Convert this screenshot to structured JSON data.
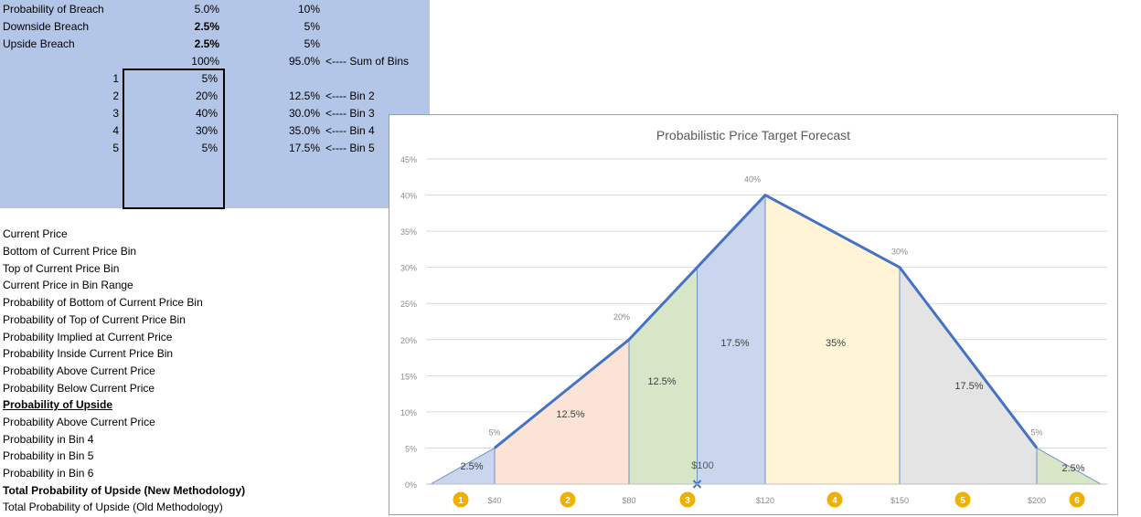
{
  "spreadsheet": {
    "top_block": [
      {
        "label": "Probability of Breach",
        "col2": "5.0%",
        "col3": "10%",
        "note": ""
      },
      {
        "label": "Downside Breach",
        "col2": "2.5%",
        "col3": "5%",
        "note": ""
      },
      {
        "label": "Upside Breach",
        "col2": "2.5%",
        "col3": "5%",
        "note": ""
      },
      {
        "label": "",
        "col2": "100%",
        "col3": "95.0%",
        "note": "<---- Sum of Bins"
      }
    ],
    "bins": [
      {
        "index": "1",
        "prob": "5%",
        "bin_pct": "",
        "note": ""
      },
      {
        "index": "2",
        "prob": "20%",
        "bin_pct": "12.5%",
        "note": "<---- Bin 2"
      },
      {
        "index": "3",
        "prob": "40%",
        "bin_pct": "30.0%",
        "note": "<---- Bin 3"
      },
      {
        "index": "4",
        "prob": "30%",
        "bin_pct": "35.0%",
        "note": "<---- Bin 4"
      },
      {
        "index": "5",
        "prob": "5%",
        "bin_pct": "17.5%",
        "note": "<---- Bin 5"
      }
    ],
    "labels": [
      {
        "text": "Current Price",
        "style": "normal"
      },
      {
        "text": "Bottom of Current Price Bin",
        "style": "normal"
      },
      {
        "text": "Top of Current Price Bin",
        "style": "normal"
      },
      {
        "text": "Current Price in Bin Range",
        "style": "normal"
      },
      {
        "text": "Probability of Bottom of Current Price Bin",
        "style": "normal"
      },
      {
        "text": "Probability of Top of Current Price Bin",
        "style": "normal"
      },
      {
        "text": "Probability Implied at Current Price",
        "style": "normal"
      },
      {
        "text": "Probability Inside Current Price Bin",
        "style": "normal"
      },
      {
        "text": "Probability Above Current Price",
        "style": "normal"
      },
      {
        "text": "Probability Below Current Price",
        "style": "normal"
      },
      {
        "text": "Probability of Upside",
        "style": "underline"
      },
      {
        "text": "Probability Above Current Price",
        "style": "normal"
      },
      {
        "text": "Probability in Bin 4",
        "style": "normal"
      },
      {
        "text": "Probability in Bin 5",
        "style": "normal"
      },
      {
        "text": "Probability in Bin 6",
        "style": "normal"
      },
      {
        "text": "Total Probability of Upside (New Methodology)",
        "style": "bold"
      },
      {
        "text": "Total Probability of Upside (Old Methodology)",
        "style": "normal"
      }
    ]
  },
  "chart_data": {
    "type": "area",
    "title": "Probabilistic Price Target Forecast",
    "yticks": [
      "0%",
      "5%",
      "10%",
      "15%",
      "20%",
      "25%",
      "30%",
      "35%",
      "40%",
      "45%"
    ],
    "ylim": [
      0,
      45
    ],
    "x_tick_labels": [
      "$40",
      "$80",
      "$120",
      "$150",
      "$200"
    ],
    "x_tick_values": [
      40,
      80,
      120,
      150,
      200
    ],
    "grid": true,
    "line_points": [
      [
        40,
        5
      ],
      [
        80,
        20
      ],
      [
        120,
        40
      ],
      [
        150,
        30
      ],
      [
        200,
        5
      ]
    ],
    "current_price_label": "$100",
    "current_price": 100,
    "point_labels": [
      {
        "text": "5%",
        "x": 40,
        "y": 5
      },
      {
        "text": "20%",
        "x": 80,
        "y": 20
      },
      {
        "text": "40%",
        "x": 120,
        "y": 40
      },
      {
        "text": "30%",
        "x": 150,
        "y": 30
      },
      {
        "text": "5%",
        "x": 200,
        "y": 5
      }
    ],
    "regions": [
      {
        "bin": "1",
        "label": "2.5%",
        "color": "#c9d6ee"
      },
      {
        "bin": "2",
        "label": "12.5%",
        "color": "#fbe3d6"
      },
      {
        "bin": "3a",
        "label": "12.5%",
        "color": "#d7e6c6"
      },
      {
        "bin": "3b",
        "label": "17.5%",
        "color": "#c9d6ee"
      },
      {
        "bin": "4",
        "label": "35%",
        "color": "#fff4d6"
      },
      {
        "bin": "5",
        "label": "17.5%",
        "color": "#e4e4e4"
      },
      {
        "bin": "6",
        "label": "2.5%",
        "color": "#d7e6c6"
      }
    ],
    "bin_badges": [
      "1",
      "2",
      "3",
      "4",
      "5",
      "6"
    ],
    "line_color": "#4472c4",
    "badge_color": "#f0b000"
  }
}
